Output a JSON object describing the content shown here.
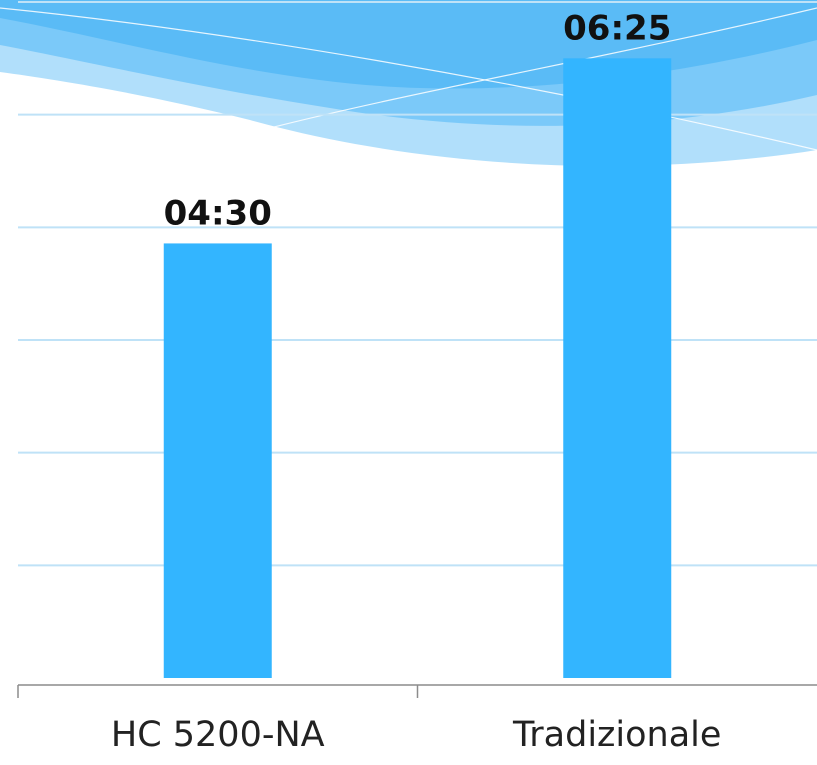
{
  "chart_data": {
    "type": "bar",
    "title": "",
    "xlabel": "",
    "ylabel": "",
    "categories": [
      "HC 5200-NA",
      "Tradizionale"
    ],
    "values": [
      270,
      385
    ],
    "value_unit": "minutes",
    "data_labels": [
      "04:30",
      "06:25"
    ],
    "ylim": [
      0,
      420
    ],
    "y_gridline_step": 70,
    "grid": true,
    "legend": "none",
    "colors": {
      "bar": "#33b5ff",
      "gridline": "#bfe2f7",
      "axis": "#8c8c8c",
      "wave_light": "#9fd7fb",
      "wave_mid": "#6cc3f8",
      "wave_dark": "#4fb6f5"
    }
  }
}
